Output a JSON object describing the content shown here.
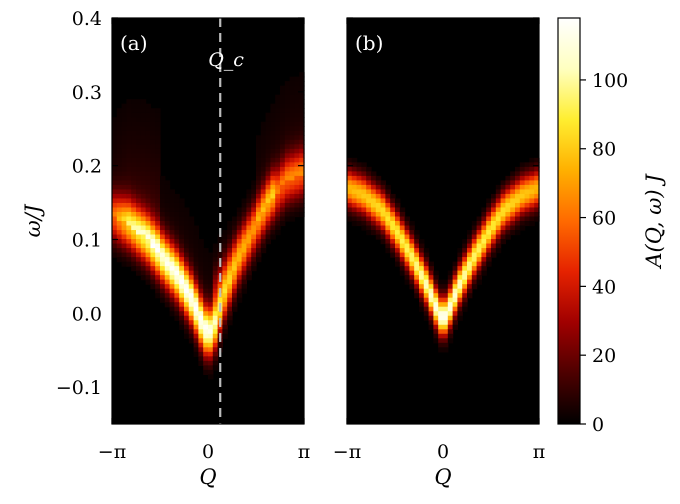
{
  "chart_data": [
    {
      "type": "heatmap",
      "panel_label": "(a)",
      "xlabel": "Q",
      "ylabel": "ω/J",
      "xlim": [
        -3.14159,
        3.14159
      ],
      "ylim": [
        -0.15,
        0.4
      ],
      "x_ticks": [
        {
          "value": -3.14159,
          "label": "−π"
        },
        {
          "value": 0,
          "label": "0"
        },
        {
          "value": 3.14159,
          "label": "π"
        }
      ],
      "y_ticks": [
        {
          "value": -0.1,
          "label": "−0.1"
        },
        {
          "value": 0.0,
          "label": "0.0"
        },
        {
          "value": 0.1,
          "label": "0.1"
        },
        {
          "value": 0.2,
          "label": "0.2"
        },
        {
          "value": 0.3,
          "label": "0.3"
        },
        {
          "value": 0.4,
          "label": "0.4"
        }
      ],
      "marker": {
        "label": "Q_c",
        "Q": 0.4
      },
      "dispersion": {
        "Q": [
          -3.14159,
          -2.6,
          -2.0,
          -1.5,
          -1.0,
          -0.5,
          -0.2,
          0.0,
          0.2,
          0.5,
          1.0,
          1.5,
          2.0,
          2.6,
          3.14159
        ],
        "omega": [
          0.13,
          0.12,
          0.1,
          0.075,
          0.05,
          0.015,
          -0.015,
          -0.03,
          -0.02,
          0.02,
          0.07,
          0.11,
          0.15,
          0.18,
          0.19
        ],
        "intensity": [
          50,
          80,
          95,
          105,
          110,
          112,
          112,
          110,
          100,
          75,
          55,
          45,
          50,
          55,
          55
        ]
      }
    },
    {
      "type": "heatmap",
      "panel_label": "(b)",
      "xlabel": "Q",
      "xlim": [
        -3.14159,
        3.14159
      ],
      "ylim": [
        -0.15,
        0.4
      ],
      "x_ticks": [
        {
          "value": -3.14159,
          "label": "−π"
        },
        {
          "value": 0,
          "label": "0"
        },
        {
          "value": 3.14159,
          "label": "π"
        }
      ],
      "dispersion": {
        "Q": [
          -3.14159,
          -2.6,
          -2.0,
          -1.5,
          -1.0,
          -0.5,
          -0.2,
          0.0,
          0.2,
          0.5,
          1.0,
          1.5,
          2.0,
          2.6,
          3.14159
        ],
        "omega": [
          0.17,
          0.16,
          0.14,
          0.11,
          0.075,
          0.035,
          0.005,
          -0.01,
          0.005,
          0.035,
          0.075,
          0.11,
          0.14,
          0.16,
          0.17
        ],
        "intensity": [
          75,
          80,
          85,
          90,
          95,
          105,
          112,
          115,
          112,
          105,
          95,
          90,
          85,
          80,
          75
        ]
      }
    }
  ],
  "colorbar": {
    "label": "A(Q, ω) J",
    "range": [
      0,
      118
    ],
    "ticks": [
      "0",
      "20",
      "40",
      "60",
      "80",
      "100"
    ],
    "tick_values": [
      0,
      20,
      40,
      60,
      80,
      100
    ],
    "colormap": [
      "#000000",
      "#4d0000",
      "#a00000",
      "#e52200",
      "#ff6a00",
      "#ffb000",
      "#ffee30",
      "#ffffc0",
      "#ffffff"
    ]
  },
  "colors": {
    "dashed_line": "#bdbdbd",
    "background": "#000000"
  }
}
